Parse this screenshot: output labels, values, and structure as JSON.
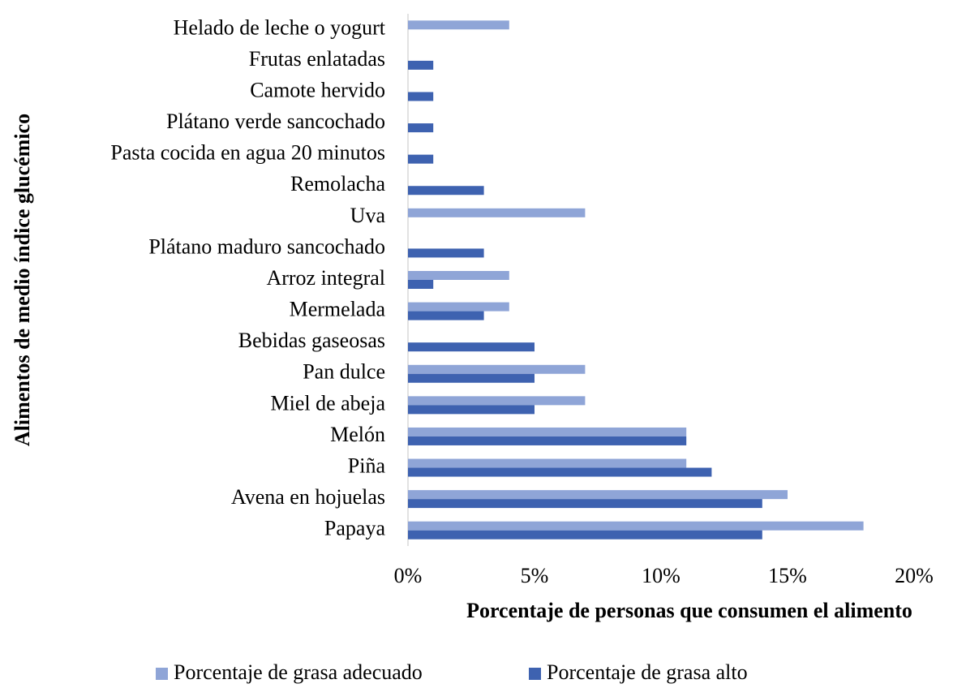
{
  "chart_data": {
    "type": "hbar",
    "xlabel": "Porcentaje de personas que consumen el alimento",
    "ylabel": "Alimentos de medio índice glucémico",
    "categories": [
      "Helado de leche o yogurt",
      "Frutas enlatadas",
      "Camote hervido",
      "Plátano verde sancochado ",
      "Pasta cocida en agua 20 minutos ",
      "Remolacha",
      "Uva ",
      "Plátano maduro sancochado",
      "Arroz integral ",
      "Mermelada",
      "Bebidas gaseosas",
      "Pan dulce",
      "Miel de abeja",
      "Melón",
      "Piña",
      "Avena en hojuelas",
      "Papaya"
    ],
    "series": [
      {
        "name": "Porcentaje de grasa adecuado",
        "color": "#8fa5d7",
        "values": [
          4,
          0,
          0,
          0,
          0,
          0,
          7,
          0,
          4,
          4,
          0,
          7,
          7,
          11,
          11,
          15,
          18
        ]
      },
      {
        "name": "Porcentaje de grasa alto",
        "color": "#3e62b0",
        "values": [
          0,
          1,
          1,
          1,
          1,
          3,
          0,
          3,
          1,
          3,
          5,
          5,
          5,
          11,
          12,
          14,
          14
        ]
      }
    ],
    "xlim": [
      0,
      20
    ],
    "xticks": [
      {
        "value": 0,
        "label": "0%"
      },
      {
        "value": 5,
        "label": "5%"
      },
      {
        "value": 10,
        "label": "10%"
      },
      {
        "value": 15,
        "label": "15%"
      },
      {
        "value": 20,
        "label": "20%"
      }
    ],
    "legend": "bottom"
  }
}
